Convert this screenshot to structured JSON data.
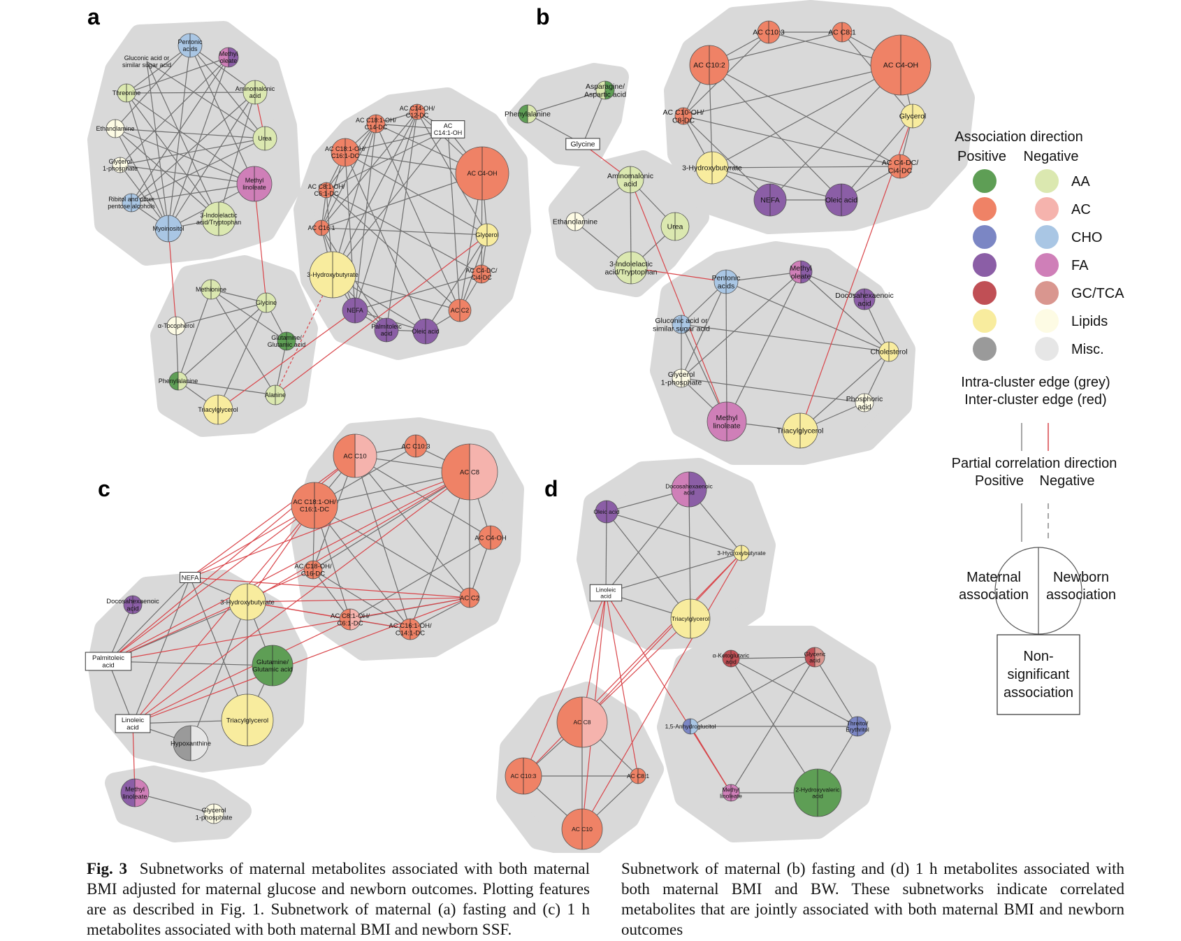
{
  "colors": {
    "AA": "#8fbf7a",
    "AA_light": "#dbe8b0",
    "AC": "#ef8266",
    "AC_light": "#f5b3ad",
    "CHO": "#7b86c4",
    "CHO_light": "#a9c6e4",
    "FA": "#8b5ea6",
    "FA_light": "#cf7fb8",
    "GCTCA": "#c04f55",
    "GCTCA_light": "#d9968f",
    "Lipids": "#f8ec9e",
    "Lipids_light": "#fdfbe4",
    "Misc": "#9a9a9a",
    "Misc_light": "#e6e6e6",
    "AA_pos": "#5e9e55",
    "cluster_bg": "#d9d9d9",
    "edge_intra": "#6e6e6e",
    "edge_inter": "#d9454a"
  },
  "panels": [
    {
      "letter": "a",
      "nodes": [
        {
          "id": "a1",
          "label": "Pentonic\nacids"
        },
        {
          "id": "a2",
          "label": "Gluconic acid or\nsimilar sugar acid"
        },
        {
          "id": "a3",
          "label": "Methyl\noleate"
        },
        {
          "id": "a4",
          "label": "Threonine"
        },
        {
          "id": "a5",
          "label": "Aminomalonic\nacid"
        },
        {
          "id": "a6",
          "label": "Ethanolamine"
        },
        {
          "id": "a7",
          "label": "Urea"
        },
        {
          "id": "a8",
          "label": "Glycerol\n1-phosphate"
        },
        {
          "id": "a9",
          "label": "Methyl\nlinoleate"
        },
        {
          "id": "a10",
          "label": "Ribitol and other\npentose alcohols"
        },
        {
          "id": "a11",
          "label": "3-Indolelactic\nacid/Tryptophan"
        },
        {
          "id": "a12",
          "label": "Myoinositol"
        },
        {
          "id": "a13",
          "label": "Methionine"
        },
        {
          "id": "a14",
          "label": "Glycine"
        },
        {
          "id": "a15",
          "label": "α-Tocopherol"
        },
        {
          "id": "a16",
          "label": "Glutamine/\nGlutamic acid"
        },
        {
          "id": "a17",
          "label": "Phenylalanine"
        },
        {
          "id": "a18",
          "label": "Alanine"
        },
        {
          "id": "a19",
          "label": "Triacylglycerol"
        },
        {
          "id": "a20",
          "label": "AC C18:1-OH/\nC14-DC"
        },
        {
          "id": "a21",
          "label": "AC C14-OH/\nC12-DC"
        },
        {
          "id": "a22",
          "label": "AC\nC14:1-OH"
        },
        {
          "id": "a23",
          "label": "AC C18:1-OH/\nC16:1-DC"
        },
        {
          "id": "a24",
          "label": "AC C4-OH"
        },
        {
          "id": "a25",
          "label": "AC C8:1-OH/\nC6:1-DC"
        },
        {
          "id": "a26",
          "label": "AC C16:1"
        },
        {
          "id": "a27",
          "label": "Glycerol"
        },
        {
          "id": "a28",
          "label": "3-Hydroxybutyrate"
        },
        {
          "id": "a29",
          "label": "AC C4-DC/\nCi4-DC"
        },
        {
          "id": "a30",
          "label": "NEFA"
        },
        {
          "id": "a31",
          "label": "AC C2"
        },
        {
          "id": "a32",
          "label": "Palmitoleic\nacid"
        },
        {
          "id": "a33",
          "label": "Oleic acid"
        }
      ]
    },
    {
      "letter": "b",
      "nodes": [
        {
          "id": "b1",
          "label": "Asparagine/\nAspartic acid"
        },
        {
          "id": "b2",
          "label": "Phenylalanine"
        },
        {
          "id": "b3",
          "label": "Glycine"
        },
        {
          "id": "b4",
          "label": "Aminomalonic\nacid"
        },
        {
          "id": "b5",
          "label": "Ethanolamine"
        },
        {
          "id": "b6",
          "label": "Urea"
        },
        {
          "id": "b7",
          "label": "3-Indolelactic\nacid/Tryptophan"
        },
        {
          "id": "b8",
          "label": "AC C10:3"
        },
        {
          "id": "b9",
          "label": "AC C8:1"
        },
        {
          "id": "b10",
          "label": "AC C10:2"
        },
        {
          "id": "b11",
          "label": "AC C4-OH"
        },
        {
          "id": "b12",
          "label": "AC C10-OH/\nC8-DC"
        },
        {
          "id": "b13",
          "label": "Glycerol"
        },
        {
          "id": "b14",
          "label": "AC C4-DC/\nCi4-DC"
        },
        {
          "id": "b15",
          "label": "3-Hydroxybutyrate"
        },
        {
          "id": "b16",
          "label": "NEFA"
        },
        {
          "id": "b17",
          "label": "Oleic acid"
        },
        {
          "id": "b18",
          "label": "Pentonic\nacids"
        },
        {
          "id": "b19",
          "label": "Methyl\noleate"
        },
        {
          "id": "b20",
          "label": "Docosahexaenoic\nacid"
        },
        {
          "id": "b21",
          "label": "Gluconic acid or\nsimilar sugar acid"
        },
        {
          "id": "b22",
          "label": "Cholesterol"
        },
        {
          "id": "b23",
          "label": "Glycerol\n1-phosphate"
        },
        {
          "id": "b24",
          "label": "Phosphoric\nacid"
        },
        {
          "id": "b25",
          "label": "Methyl\nlinoleate"
        },
        {
          "id": "b26",
          "label": "Triacylglycerol"
        }
      ]
    },
    {
      "letter": "c",
      "nodes": [
        {
          "id": "c1",
          "label": "AC C10"
        },
        {
          "id": "c2",
          "label": "AC C10:3"
        },
        {
          "id": "c3",
          "label": "AC C8"
        },
        {
          "id": "c4",
          "label": "AC C18:1-OH/\nC16:1-DC"
        },
        {
          "id": "c5",
          "label": "AC C4-OH"
        },
        {
          "id": "c6",
          "label": "AC C18-OH/\nC16-DC"
        },
        {
          "id": "c7",
          "label": "AC C2"
        },
        {
          "id": "c8",
          "label": "AC C8:1-OH/\nC6:1-DC"
        },
        {
          "id": "c9",
          "label": "AC C16:1-OH/\nC14:1-DC"
        },
        {
          "id": "c10",
          "label": "NEFA"
        },
        {
          "id": "c11",
          "label": "Docosahexaenoic\nacid"
        },
        {
          "id": "c12",
          "label": "3-Hydroxybutyrate"
        },
        {
          "id": "c13",
          "label": "Palmitoleic\nacid"
        },
        {
          "id": "c14",
          "label": "Glutamine/\nGlutamic acid"
        },
        {
          "id": "c15",
          "label": "Triacylglycerol"
        },
        {
          "id": "c16",
          "label": "Linoleic\nacid"
        },
        {
          "id": "c17",
          "label": "Hypoxanthine"
        },
        {
          "id": "c18",
          "label": "Methyl\nlinoleate"
        },
        {
          "id": "c19",
          "label": "Glycerol\n1-phosphate"
        }
      ]
    },
    {
      "letter": "d",
      "nodes": [
        {
          "id": "d1",
          "label": "Docosahexaenoic\nacid"
        },
        {
          "id": "d2",
          "label": "Oleic acid"
        },
        {
          "id": "d3",
          "label": "3-Hydroxybutyrate"
        },
        {
          "id": "d4",
          "label": "Linoleic\nacid"
        },
        {
          "id": "d5",
          "label": "Triacylglycerol"
        },
        {
          "id": "d6",
          "label": "α-Ketoglutaric\nacid"
        },
        {
          "id": "d7",
          "label": "Glyceric\nacid"
        },
        {
          "id": "d8",
          "label": "1,5-Anhydroglucitol"
        },
        {
          "id": "d9",
          "label": "Threitol/\nErythritol"
        },
        {
          "id": "d10",
          "label": "Methyl\nlinoleate"
        },
        {
          "id": "d11",
          "label": "2-Hydroxyvaleric\nacid"
        },
        {
          "id": "d12",
          "label": "AC C8"
        },
        {
          "id": "d13",
          "label": "AC C10:3"
        },
        {
          "id": "d14",
          "label": "AC C8:1"
        },
        {
          "id": "d15",
          "label": "AC C10"
        }
      ]
    }
  ],
  "legend": {
    "assoc_title": "Association direction",
    "pos_label": "Positive",
    "neg_label": "Negative",
    "classes": [
      "AA",
      "AC",
      "CHO",
      "FA",
      "GC/TCA",
      "Lipids",
      "Misc."
    ],
    "edge_title_1": "Intra-cluster edge (grey)",
    "edge_title_2": "Inter-cluster edge (red)",
    "pc_title": "Partial correlation direction",
    "pc_pos": "Positive",
    "pc_neg": "Negative",
    "maternal_1": "Maternal",
    "maternal_2": "association",
    "newborn_1": "Newborn",
    "newborn_2": "association",
    "nonsig_1": "Non-",
    "nonsig_2": "significant",
    "nonsig_3": "association"
  },
  "caption": {
    "fig_label": "Fig. 3",
    "left_text": "Subnetworks of maternal metabolites associated with both maternal BMI adjusted for maternal glucose and newborn outcomes. Plotting features are as described in Fig. 1. Subnetwork of maternal (a) fasting and (c) 1 h metabolites associated with both maternal BMI and newborn SSF.",
    "right_text": "Subnetwork of maternal (b) fasting and (d) 1 h metabolites associated with both maternal BMI and BW. These subnetworks indicate correlated metabolites that are jointly associated with both maternal BMI and newborn outcomes"
  }
}
